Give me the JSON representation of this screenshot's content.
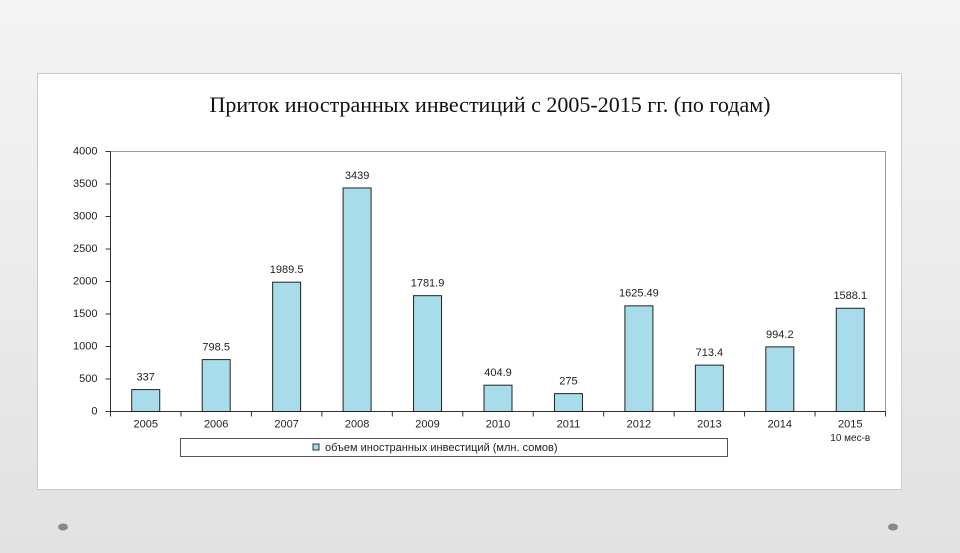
{
  "chart_data": {
    "type": "bar",
    "title": "Приток иностранных инвестиций с 2005-2015 гг. (по годам)",
    "categories": [
      "2005",
      "2006",
      "2007",
      "2008",
      "2009",
      "2010",
      "2011",
      "2012",
      "2013",
      "2014",
      "2015"
    ],
    "category_note": "10 мес-в",
    "series": [
      {
        "name": "объем иностранных инвестиций (млн. сомов)",
        "color": "#a9dceb",
        "values": [
          337,
          798.5,
          1989.5,
          3439,
          1781.9,
          404.9,
          275,
          1625.49,
          713.4,
          994.2,
          1588.1
        ]
      }
    ],
    "ylim": [
      0,
      4000
    ],
    "yticks": [
      0,
      500,
      1000,
      1500,
      2000,
      2500,
      3000,
      3500,
      4000
    ],
    "grid": false,
    "legend": "bottom"
  }
}
